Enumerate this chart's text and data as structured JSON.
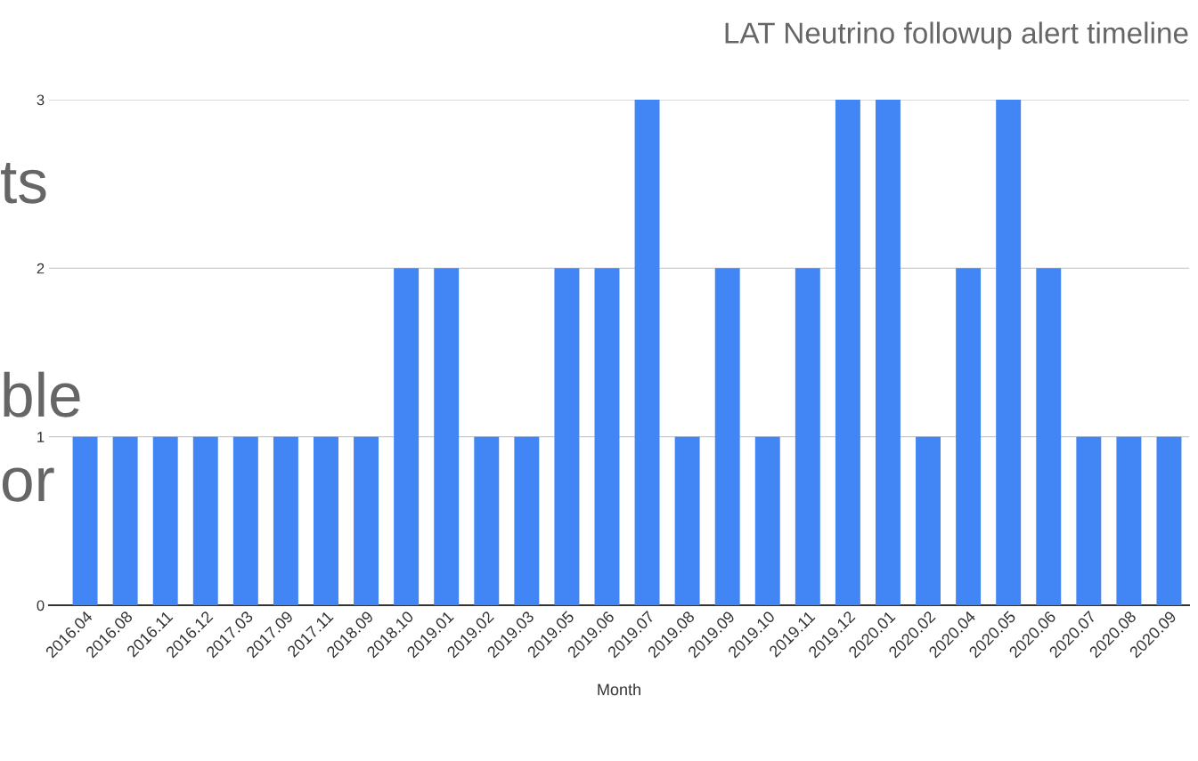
{
  "chart_data": {
    "type": "bar",
    "title": "LAT Neutrino followup alert timeline",
    "xlabel": "Month",
    "categories": [
      "2016.04",
      "2016.08",
      "2016.11",
      "2016.12",
      "2017.03",
      "2017.09",
      "2017.11",
      "2018.09",
      "2018.10",
      "2019.01",
      "2019.02",
      "2019.03",
      "2019.05",
      "2019.06",
      "2019.07",
      "2019.08",
      "2019.09",
      "2019.10",
      "2019.11",
      "2019.12",
      "2020.01",
      "2020.02",
      "2020.04",
      "2020.05",
      "2020.06",
      "2020.07",
      "2020.08",
      "2020.09"
    ],
    "values": [
      1,
      1,
      1,
      1,
      1,
      1,
      1,
      1,
      2,
      2,
      1,
      1,
      2,
      2,
      3,
      1,
      2,
      1,
      2,
      3,
      3,
      1,
      2,
      3,
      2,
      1,
      1,
      1
    ],
    "color": "#4285f4",
    "ylim": [
      0,
      3
    ],
    "yticks": [
      0,
      1,
      2,
      3
    ],
    "grid": "y",
    "legend": false,
    "annotations": [
      "ts",
      "ble",
      "or"
    ]
  }
}
